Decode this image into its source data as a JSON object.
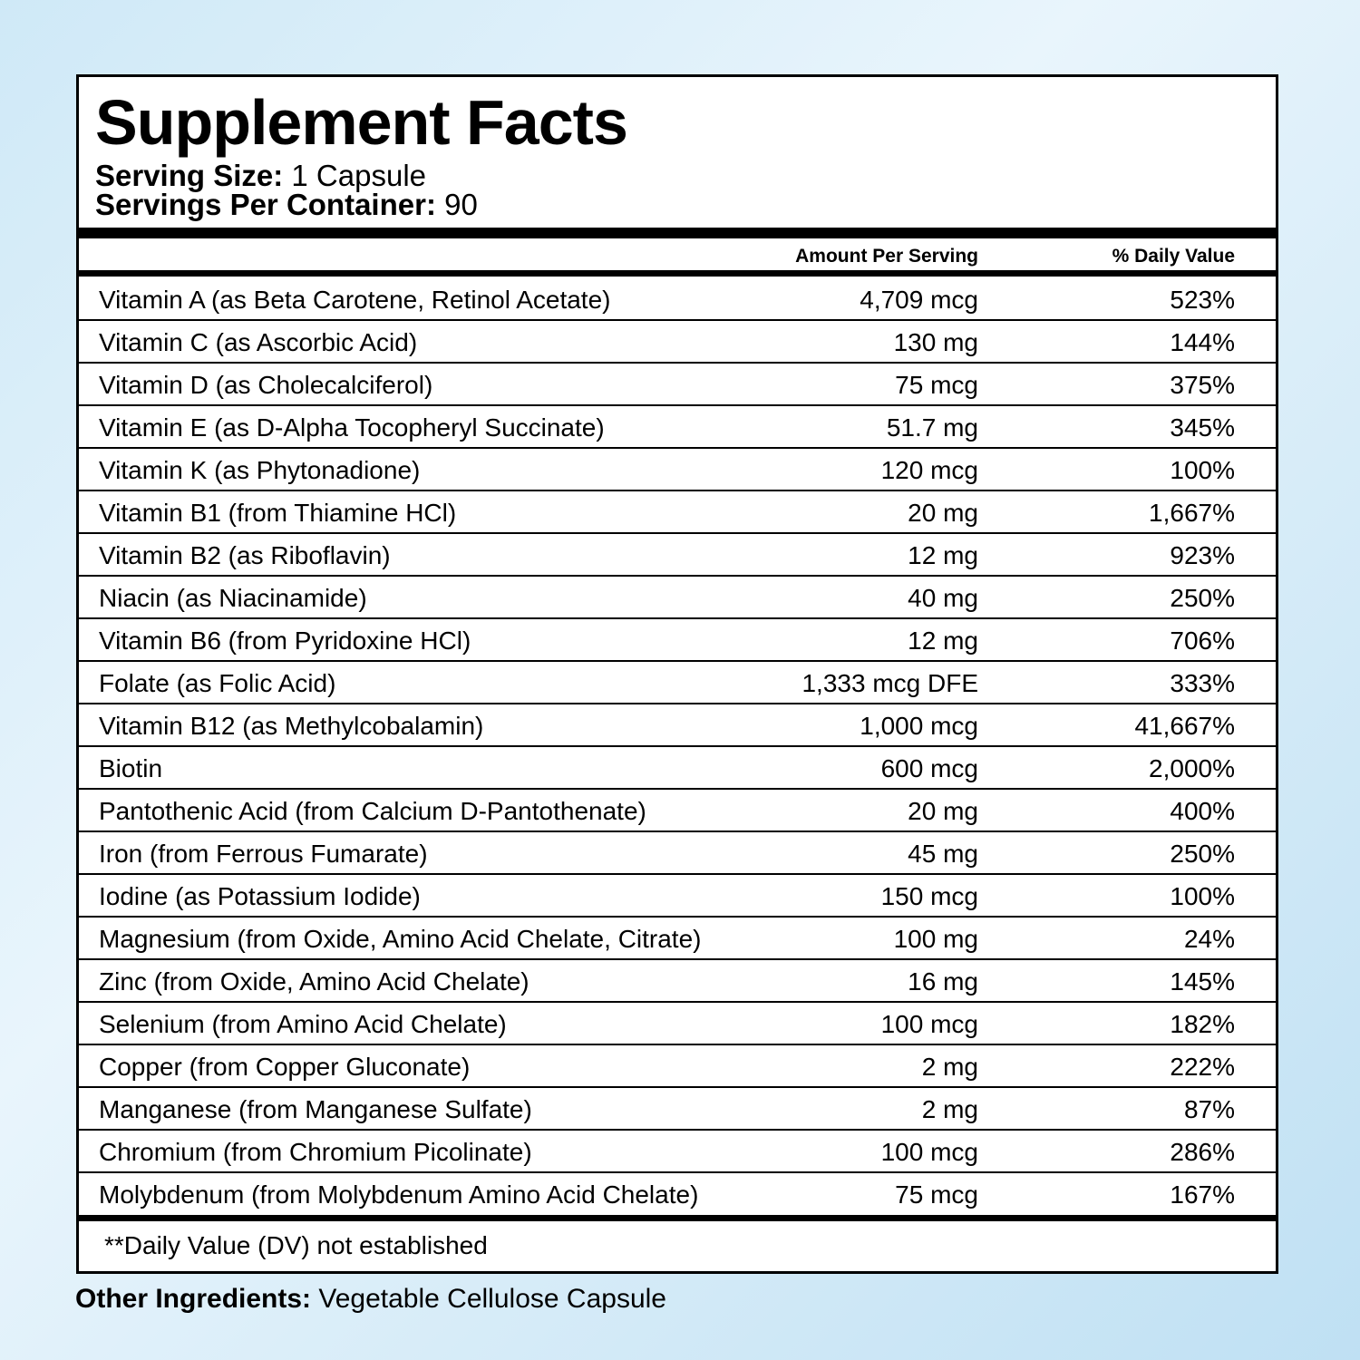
{
  "header": {
    "title": "Supplement Facts",
    "serving_size_label": "Serving Size:",
    "serving_size": "1 Capsule",
    "servings_label": "Servings Per Container:",
    "servings": "90"
  },
  "table": {
    "columns": [
      "Amount Per Serving",
      "% Daily Value"
    ],
    "rows": [
      [
        "Vitamin A (as Beta Carotene,  Retinol Acetate)",
        "4,709 mcg",
        "523%"
      ],
      [
        "Vitamin C (as Ascorbic Acid)",
        "130 mg",
        "144%"
      ],
      [
        "Vitamin D (as Cholecalciferol)",
        "75 mcg",
        "375%"
      ],
      [
        "Vitamin E (as D-Alpha Tocopheryl Succinate)",
        "51.7 mg",
        "345%"
      ],
      [
        "Vitamin K (as Phytonadione)",
        "120 mcg",
        "100%"
      ],
      [
        "Vitamin B1 (from Thiamine HCl)",
        "20 mg",
        "1,667%"
      ],
      [
        "Vitamin B2 (as Riboflavin)",
        "12 mg",
        "923%"
      ],
      [
        "Niacin (as Niacinamide)",
        "40 mg",
        "250%"
      ],
      [
        "Vitamin B6 (from Pyridoxine HCl)",
        "12 mg",
        "706%"
      ],
      [
        "Folate (as Folic Acid)",
        "1,333 mcg DFE",
        "333%"
      ],
      [
        "Vitamin B12 (as Methylcobalamin)",
        "1,000 mcg",
        "41,667%"
      ],
      [
        "Biotin",
        "600 mcg",
        "2,000%"
      ],
      [
        "Pantothenic Acid (from Calcium D-Pantothenate)",
        "20 mg",
        "400%"
      ],
      [
        "Iron (from Ferrous Fumarate)",
        "45 mg",
        "250%"
      ],
      [
        "Iodine (as Potassium Iodide)",
        "150 mcg",
        "100%"
      ],
      [
        "Magnesium (from Oxide, Amino Acid Chelate, Citrate)",
        "100 mg",
        "24%"
      ],
      [
        "Zinc (from Oxide, Amino Acid Chelate)",
        "16 mg",
        "145%"
      ],
      [
        "Selenium (from Amino Acid Chelate)",
        "100 mcg",
        "182%"
      ],
      [
        "Copper (from Copper Gluconate)",
        "2 mg",
        "222%"
      ],
      [
        "Manganese (from Manganese Sulfate)",
        "2 mg",
        "87%"
      ],
      [
        "Chromium (from Chromium Picolinate)",
        "100 mcg",
        "286%"
      ],
      [
        "Molybdenum (from Molybdenum Amino Acid Chelate)",
        "75 mcg",
        "167%"
      ]
    ],
    "footnote": "**Daily Value (DV) not established"
  },
  "other_ingredients": {
    "label": "Other Ingredients:",
    "value": "Vegetable Cellulose Capsule"
  }
}
